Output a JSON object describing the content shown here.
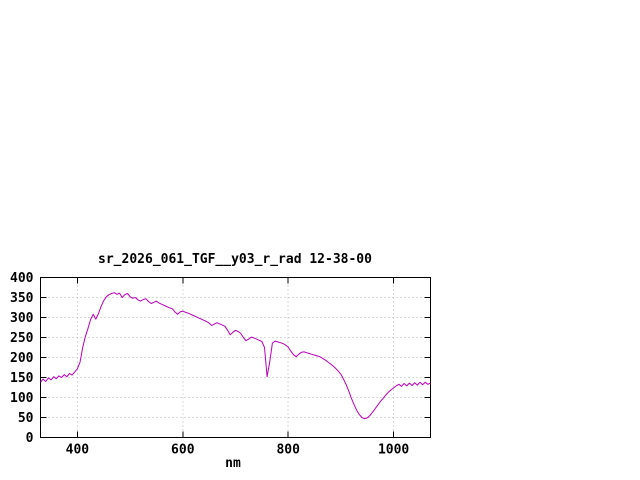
{
  "page": {
    "background": "#ffffff"
  },
  "chart_data": {
    "type": "line",
    "title": "sr_2026_061_TGF__y03_r_rad 12-38-00",
    "xlabel": "nm",
    "ylabel": "",
    "xlim": [
      330,
      1070
    ],
    "ylim": [
      0,
      400
    ],
    "x_ticks": [
      400,
      600,
      800,
      1000
    ],
    "y_ticks": [
      0,
      50,
      100,
      150,
      200,
      250,
      300,
      350,
      400
    ],
    "grid": true,
    "legend_position": "none",
    "line_color": "#bb00bb",
    "grid_color": "#b4b4b4",
    "axis_color": "#000000",
    "series": [
      {
        "name": "sr_2026_061_TGF__y03_r_rad",
        "x": [
          330,
          335,
          340,
          345,
          350,
          355,
          360,
          365,
          370,
          375,
          380,
          385,
          390,
          395,
          400,
          405,
          410,
          415,
          420,
          425,
          430,
          435,
          440,
          445,
          450,
          455,
          460,
          465,
          470,
          475,
          480,
          485,
          490,
          495,
          500,
          505,
          510,
          515,
          520,
          525,
          530,
          535,
          540,
          545,
          550,
          555,
          560,
          565,
          570,
          575,
          580,
          585,
          590,
          595,
          600,
          605,
          610,
          615,
          620,
          625,
          630,
          635,
          640,
          645,
          650,
          655,
          660,
          665,
          670,
          675,
          680,
          685,
          690,
          695,
          700,
          705,
          710,
          715,
          720,
          725,
          730,
          735,
          740,
          745,
          750,
          755,
          760,
          765,
          770,
          775,
          780,
          785,
          790,
          795,
          800,
          805,
          810,
          815,
          820,
          825,
          830,
          835,
          840,
          845,
          850,
          855,
          860,
          865,
          870,
          875,
          880,
          885,
          890,
          895,
          900,
          905,
          910,
          915,
          920,
          925,
          930,
          935,
          940,
          945,
          950,
          955,
          960,
          965,
          970,
          975,
          980,
          985,
          990,
          995,
          1000,
          1005,
          1010,
          1015,
          1020,
          1025,
          1030,
          1035,
          1040,
          1045,
          1050,
          1055,
          1060,
          1065,
          1070
        ],
        "y": [
          138,
          146,
          140,
          149,
          144,
          152,
          147,
          154,
          150,
          157,
          152,
          160,
          156,
          164,
          172,
          188,
          225,
          252,
          272,
          295,
          308,
          296,
          310,
          328,
          342,
          352,
          357,
          360,
          362,
          358,
          361,
          350,
          357,
          360,
          352,
          348,
          350,
          344,
          341,
          345,
          347,
          340,
          335,
          338,
          341,
          336,
          333,
          330,
          327,
          324,
          322,
          314,
          308,
          314,
          316,
          313,
          311,
          308,
          305,
          302,
          299,
          296,
          293,
          290,
          286,
          280,
          284,
          287,
          284,
          281,
          278,
          268,
          257,
          263,
          268,
          265,
          260,
          250,
          242,
          246,
          251,
          249,
          246,
          243,
          240,
          225,
          152,
          190,
          236,
          241,
          239,
          237,
          235,
          231,
          226,
          216,
          207,
          202,
          208,
          213,
          214,
          212,
          210,
          208,
          206,
          204,
          202,
          198,
          194,
          189,
          184,
          179,
          173,
          166,
          158,
          146,
          132,
          116,
          98,
          82,
          68,
          57,
          50,
          47,
          49,
          55,
          63,
          72,
          81,
          90,
          98,
          106,
          113,
          119,
          124,
          129,
          133,
          128,
          135,
          129,
          136,
          130,
          137,
          131,
          138,
          132,
          138,
          133,
          136
        ]
      }
    ]
  }
}
